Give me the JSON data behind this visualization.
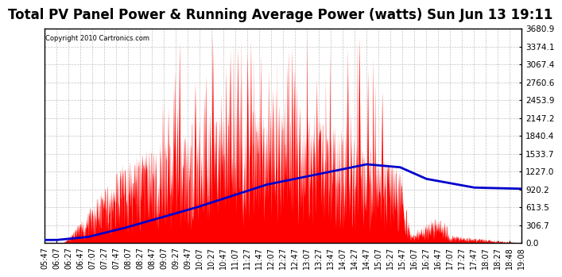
{
  "title": "Total PV Panel Power & Running Average Power (watts) Sun Jun 13 19:11",
  "copyright": "Copyright 2010 Cartronics.com",
  "ylabel_ticks": [
    0.0,
    306.7,
    613.5,
    920.2,
    1227.0,
    1533.7,
    1840.4,
    2147.2,
    2453.9,
    2760.6,
    3067.4,
    3374.1,
    3680.9
  ],
  "ymax": 3680.9,
  "ymin": 0.0,
  "bg_color": "#ffffff",
  "plot_bg_color": "#ffffff",
  "grid_color": "#aaaaaa",
  "fill_color": "#ff0000",
  "line_color": "#0000cc",
  "title_fontsize": 12,
  "tick_fontsize": 7.5,
  "x_labels": [
    "05:47",
    "06:07",
    "06:27",
    "06:47",
    "07:07",
    "07:27",
    "07:47",
    "08:07",
    "08:27",
    "08:47",
    "09:07",
    "09:27",
    "09:47",
    "10:07",
    "10:27",
    "10:47",
    "11:07",
    "11:27",
    "11:47",
    "12:07",
    "12:27",
    "12:47",
    "13:07",
    "13:27",
    "13:47",
    "14:07",
    "14:27",
    "14:47",
    "15:07",
    "15:27",
    "15:47",
    "16:07",
    "16:27",
    "16:47",
    "17:07",
    "17:27",
    "17:47",
    "18:07",
    "18:27",
    "18:48",
    "19:08"
  ]
}
